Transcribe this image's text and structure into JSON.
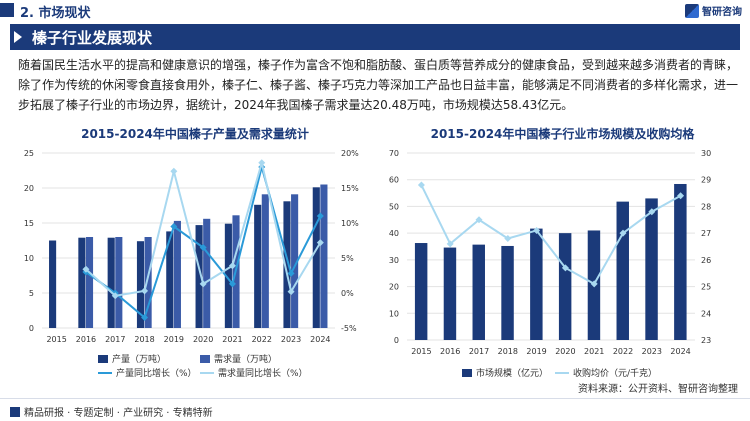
{
  "header": {
    "section": "2. 市场现状",
    "logo_text": "智研咨询"
  },
  "title": "榛子行业发展现状",
  "paragraph": "随着国民生活水平的提高和健康意识的增强，榛子作为富含不饱和脂肪酸、蛋白质等营养成分的健康食品，受到越来越多消费者的青睐，除了作为传统的休闲零食直接食用外，榛子仁、榛子酱、榛子巧克力等深加工产品也日益丰富，能够满足不同消费者的多样化需求，进一步拓展了榛子行业的市场边界，据统计，2024年我国榛子需求量达20.48万吨，市场规模达58.43亿元。",
  "source": "资料来源：公开资料、智研咨询整理",
  "footer": "精品研报 · 专题定制 · 产业研究 · 专精特新",
  "colors": {
    "navy": "#1b3a7a",
    "blue": "#3b5ba8",
    "line_dark": "#2a9ad8",
    "line_light": "#a8d8f0"
  },
  "chart_data": [
    {
      "type": "bar",
      "title": "2015-2024年中国榛子产量及需求量统计",
      "categories": [
        "2015",
        "2016",
        "2017",
        "2018",
        "2019",
        "2020",
        "2021",
        "2022",
        "2023",
        "2024"
      ],
      "ylim": [
        0,
        25
      ],
      "yticks": [
        "0",
        "5",
        "10",
        "15",
        "20",
        "25"
      ],
      "y2lim": [
        -5,
        20
      ],
      "y2ticks": [
        "-5%",
        "0%",
        "5%",
        "10%",
        "15%",
        "20%"
      ],
      "series": [
        {
          "name": "产量（万吨）",
          "kind": "bar",
          "color": "#1b3a7a",
          "values": [
            12.5,
            12.9,
            12.9,
            12.4,
            13.8,
            14.7,
            14.9,
            17.6,
            18.1,
            20.1
          ]
        },
        {
          "name": "需求量（万吨）",
          "kind": "bar",
          "color": "#3b5ba8",
          "values": [
            null,
            13.0,
            13.0,
            13.0,
            15.3,
            15.6,
            16.1,
            19.1,
            19.1,
            20.5
          ]
        },
        {
          "name": "产量同比增长（%）",
          "kind": "line",
          "color": "#2a9ad8",
          "values": [
            null,
            3.0,
            0.0,
            -3.5,
            9.5,
            6.5,
            1.3,
            18.0,
            2.8,
            11.0
          ]
        },
        {
          "name": "需求量同比增长（%）",
          "kind": "line",
          "color": "#a8d8f0",
          "values": [
            null,
            3.4,
            -0.4,
            0.3,
            17.4,
            1.3,
            3.9,
            18.6,
            0.2,
            7.2
          ]
        }
      ]
    },
    {
      "type": "bar",
      "title": "2015-2024年中国榛子行业市场规模及收购均格",
      "categories": [
        "2015",
        "2016",
        "2017",
        "2018",
        "2019",
        "2020",
        "2021",
        "2022",
        "2023",
        "2024"
      ],
      "ylim": [
        0,
        70
      ],
      "yticks": [
        "0",
        "10",
        "20",
        "30",
        "40",
        "50",
        "60",
        "70"
      ],
      "y2lim": [
        23,
        30
      ],
      "y2ticks": [
        "23",
        "24",
        "25",
        "26",
        "27",
        "28",
        "29",
        "30"
      ],
      "series": [
        {
          "name": "市场规模（亿元）",
          "kind": "bar",
          "color": "#1b3a7a",
          "values": [
            36.3,
            34.6,
            35.7,
            35.2,
            41.7,
            40.0,
            41.0,
            51.8,
            53.0,
            58.4
          ]
        },
        {
          "name": "收购均价（元/千克）",
          "kind": "line",
          "color": "#a8d8f0",
          "values": [
            28.8,
            26.6,
            27.5,
            26.8,
            27.1,
            25.7,
            25.1,
            27.0,
            27.8,
            28.4
          ]
        }
      ]
    }
  ]
}
